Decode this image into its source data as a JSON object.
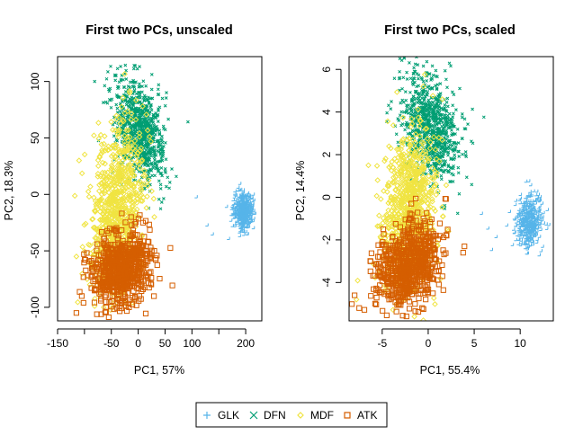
{
  "colors": {
    "GLK": "#56b4e9",
    "DFN": "#009e73",
    "MDF": "#f0e442",
    "ATK": "#d55e00"
  },
  "legend": {
    "items": [
      {
        "label": "GLK",
        "symbol": "plus",
        "color": "#56b4e9"
      },
      {
        "label": "DFN",
        "symbol": "cross",
        "color": "#009e73"
      },
      {
        "label": "MDF",
        "symbol": "diamond",
        "color": "#f0e442"
      },
      {
        "label": "ATK",
        "symbol": "square",
        "color": "#d55e00"
      }
    ]
  },
  "chart_data": [
    {
      "type": "scatter",
      "title": "First two PCs, unscaled",
      "xlabel": "PC1, 57%",
      "ylabel": "PC2, 18.3%",
      "xlim": [
        -150,
        230
      ],
      "ylim": [
        -112,
        122
      ],
      "xticks": [
        -150,
        -100,
        -50,
        0,
        50,
        100,
        150,
        200
      ],
      "xtick_labels": [
        "-150",
        "",
        "-50",
        "0",
        "50",
        "100",
        "",
        "200"
      ],
      "yticks": [
        -100,
        -50,
        0,
        50,
        100
      ],
      "ytick_labels": [
        "-100",
        "-50",
        "0",
        "50",
        "100"
      ],
      "grid": false,
      "legend": "bottom",
      "series": [
        {
          "name": "DFN",
          "count": 900,
          "cx": 5,
          "cy": 55,
          "sx": 24,
          "sy": 22,
          "corr": -0.35,
          "outliers": [
            [
              -5,
              113
            ],
            [
              28,
              105
            ],
            [
              5,
              112
            ],
            [
              95,
              63
            ],
            [
              -60,
              95
            ]
          ]
        },
        {
          "name": "MDF",
          "count": 800,
          "cx": -40,
          "cy": -15,
          "sx": 25,
          "sy": 36,
          "corr": 0.25,
          "outliers": [
            [
              -110,
              30
            ],
            [
              -115,
              -55
            ],
            [
              -90,
              -80
            ],
            [
              30,
              -20
            ]
          ]
        },
        {
          "name": "ATK",
          "count": 700,
          "cx": -30,
          "cy": -65,
          "sx": 28,
          "sy": 16,
          "corr": 0.2,
          "outliers": [
            [
              -115,
              -105
            ],
            [
              -105,
              -90
            ],
            [
              30,
              -50
            ],
            [
              -60,
              -100
            ]
          ]
        },
        {
          "name": "GLK",
          "count": 450,
          "cx": 197,
          "cy": -15,
          "sx": 9,
          "sy": 8,
          "corr": 0,
          "outliers": [
            [
              110,
              -3
            ],
            [
              130,
              -28
            ],
            [
              140,
              -36
            ],
            [
              170,
              -40
            ]
          ]
        }
      ]
    },
    {
      "type": "scatter",
      "title": "First two PCs, scaled",
      "xlabel": "PC1, 55.4%",
      "ylabel": "PC2, 14.4%",
      "xlim": [
        -8.6,
        13.6
      ],
      "ylim": [
        -5.8,
        6.6
      ],
      "xticks": [
        -5,
        0,
        5,
        10
      ],
      "xtick_labels": [
        "-5",
        "0",
        "5",
        "10"
      ],
      "yticks": [
        -4,
        -2,
        0,
        2,
        4,
        6
      ],
      "ytick_labels": [
        "-4",
        "-2",
        "0",
        "2",
        "4",
        "6"
      ],
      "grid": false,
      "legend": "bottom",
      "series": [
        {
          "name": "DFN",
          "count": 900,
          "cx": 0.4,
          "cy": 3.2,
          "sx": 1.55,
          "sy": 1.3,
          "corr": -0.3,
          "outliers": [
            [
              0,
              6.3
            ],
            [
              0.6,
              6.1
            ],
            [
              2.6,
              6.1
            ],
            [
              6.2,
              3.7
            ],
            [
              -3,
              5.5
            ]
          ]
        },
        {
          "name": "MDF",
          "count": 800,
          "cx": -2.0,
          "cy": -0.5,
          "sx": 1.5,
          "sy": 1.9,
          "corr": 0.2,
          "outliers": [
            [
              -6.5,
              1.5
            ],
            [
              -7.8,
              -4.8
            ],
            [
              -1.5,
              -5.6
            ],
            [
              2.2,
              -1.6
            ]
          ]
        },
        {
          "name": "ATK",
          "count": 700,
          "cx": -2.0,
          "cy": -3.2,
          "sx": 1.7,
          "sy": 1.0,
          "corr": 0.25,
          "outliers": [
            [
              -7.5,
              -5.2
            ],
            [
              -8,
              -4.6
            ],
            [
              3.8,
              -2.6
            ],
            [
              2,
              -1.8
            ]
          ]
        },
        {
          "name": "GLK",
          "count": 450,
          "cx": 11.0,
          "cy": -1.2,
          "sx": 0.75,
          "sy": 0.6,
          "corr": 0.1,
          "outliers": [
            [
              7,
              -2.5
            ],
            [
              5.9,
              -0.8
            ],
            [
              6.6,
              -1.5
            ],
            [
              7.5,
              -1.9
            ]
          ]
        }
      ]
    }
  ]
}
